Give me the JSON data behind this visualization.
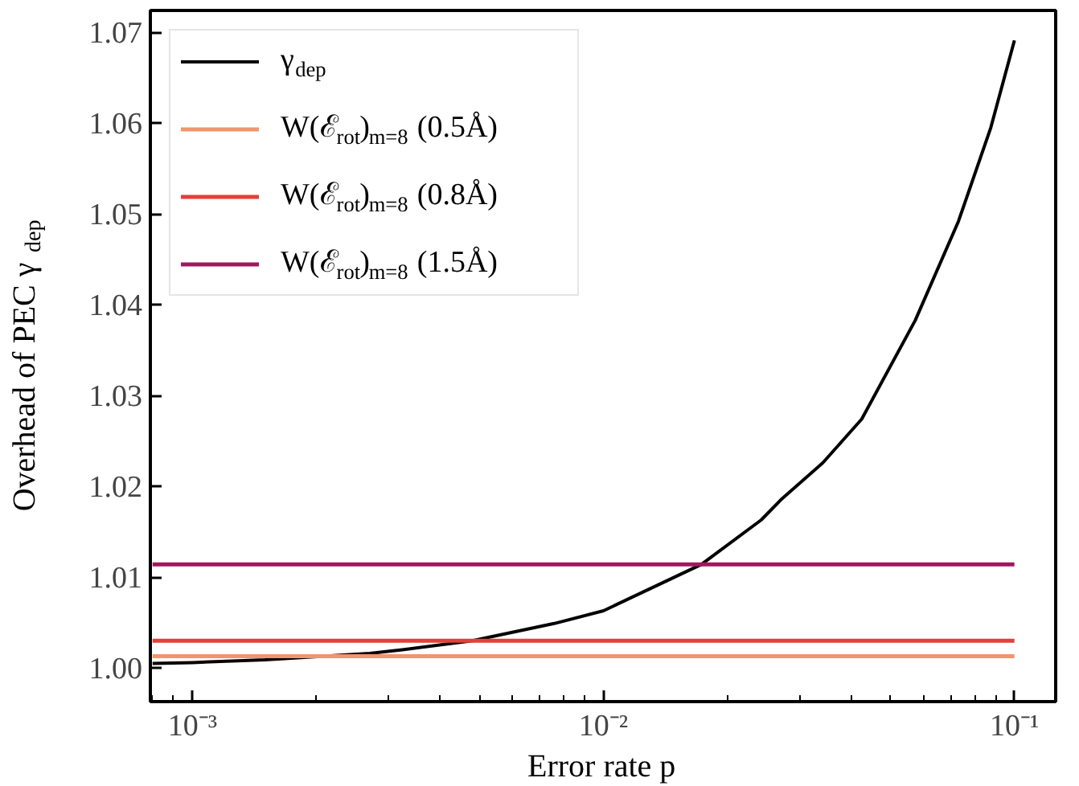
{
  "chart_data": {
    "type": "line",
    "xlabel": "Error rate p",
    "ylabel": "Overhead of PEC γ$_{dep}$",
    "log": "x",
    "grid": false,
    "legend": "top left",
    "xlim": [
      0.00079,
      0.126
    ],
    "ylim": [
      0.9963,
      1.0724
    ],
    "xticks": [
      {
        "value": 0.0008,
        "label": null
      },
      {
        "value": 0.0009,
        "label": null
      },
      {
        "value": 0.001,
        "label": "10⁻³"
      },
      {
        "value": 0.002,
        "label": null
      },
      {
        "value": 0.003,
        "label": null
      },
      {
        "value": 0.004,
        "label": null
      },
      {
        "value": 0.005,
        "label": null
      },
      {
        "value": 0.006,
        "label": null
      },
      {
        "value": 0.007,
        "label": null
      },
      {
        "value": 0.008,
        "label": null
      },
      {
        "value": 0.009,
        "label": null
      },
      {
        "value": 0.01,
        "label": "10⁻²"
      },
      {
        "value": 0.02,
        "label": null
      },
      {
        "value": 0.03,
        "label": null
      },
      {
        "value": 0.04,
        "label": null
      },
      {
        "value": 0.05,
        "label": null
      },
      {
        "value": 0.06,
        "label": null
      },
      {
        "value": 0.07,
        "label": null
      },
      {
        "value": 0.08,
        "label": null
      },
      {
        "value": 0.09,
        "label": null
      },
      {
        "value": 0.1,
        "label": "10⁻¹"
      }
    ],
    "yticks": [
      {
        "value": 1.0,
        "label": "1.00"
      },
      {
        "value": 1.01,
        "label": "1.01"
      },
      {
        "value": 1.02,
        "label": "1.02"
      },
      {
        "value": 1.03,
        "label": "1.03"
      },
      {
        "value": 1.04,
        "label": "1.04"
      },
      {
        "value": 1.05,
        "label": "1.05"
      },
      {
        "value": 1.06,
        "label": "1.06"
      },
      {
        "value": 1.07,
        "label": "1.07"
      }
    ],
    "series": [
      {
        "name": "γ$_{dep}$",
        "color": "#000000",
        "x": [
          0.0008,
          0.001,
          0.0015,
          0.0027,
          0.00324,
          0.0048,
          0.00759,
          0.01,
          0.0173,
          0.0242,
          0.027,
          0.0342,
          0.0425,
          0.0574,
          0.0731,
          0.0876,
          0.1
        ],
        "values": [
          1.0005,
          1.0006,
          1.0009,
          1.0016,
          1.002,
          1.003,
          1.0049,
          1.0063,
          1.0114,
          1.0163,
          1.0185,
          1.0226,
          1.0274,
          1.0383,
          1.0492,
          1.0595,
          1.0691
        ]
      },
      {
        "name": "W(ℰ$_{rot}$)$_{m=8}$ (0.5Å)",
        "color": "#f0956c",
        "x": [
          0.0008,
          0.1
        ],
        "values": [
          1.0013,
          1.0013
        ]
      },
      {
        "name": "W(ℰ$_{rot}$)$_{m=8}$ (0.8Å)",
        "color": "#e3403a",
        "x": [
          0.0008,
          0.1
        ],
        "values": [
          1.003,
          1.003
        ]
      },
      {
        "name": "W(ℰ$_{rot}$)$_{m=8}$ (1.5Å)",
        "color": "#a1185d",
        "x": [
          0.0008,
          0.1
        ],
        "values": [
          1.0114,
          1.0114
        ]
      }
    ]
  }
}
